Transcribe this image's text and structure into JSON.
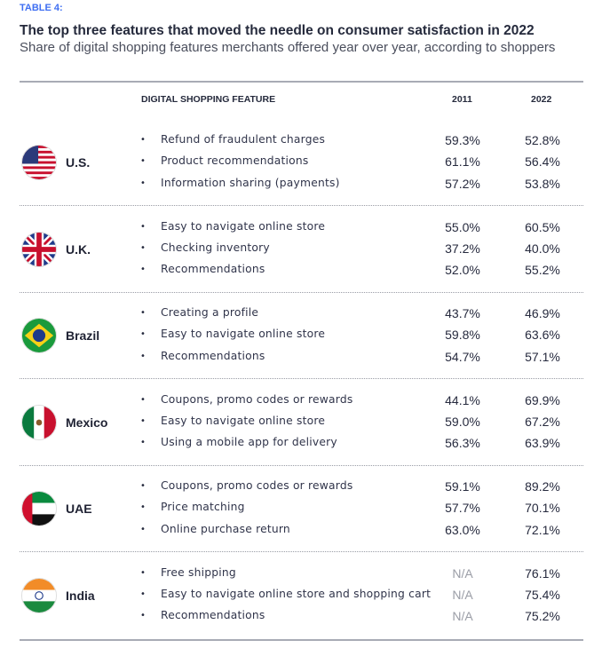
{
  "label": "TABLE 4:",
  "title": "The top three features that moved the needle on consumer satisfaction in 2022",
  "subtitle": "Share of digital shopping features merchants offered year over year, according to shoppers",
  "headers": {
    "feature": "DIGITAL SHOPPING FEATURE",
    "y1": "2011",
    "y2": "2022"
  },
  "groups": [
    {
      "country": "U.S.",
      "flag": "us-flag",
      "rows": [
        [
          "Refund of fraudulent charges",
          "59.3%",
          "52.8%"
        ],
        [
          "Product recommendations",
          "61.1%",
          "56.4%"
        ],
        [
          "Information sharing (payments)",
          "57.2%",
          "53.8%"
        ]
      ]
    },
    {
      "country": "U.K.",
      "flag": "uk-flag",
      "rows": [
        [
          "Easy to navigate online store",
          "55.0%",
          "60.5%"
        ],
        [
          "Checking inventory",
          "37.2%",
          "40.0%"
        ],
        [
          "Recommendations",
          "52.0%",
          "55.2%"
        ]
      ]
    },
    {
      "country": "Brazil",
      "flag": "brazil-flag",
      "rows": [
        [
          "Creating a profile",
          "43.7%",
          "46.9%"
        ],
        [
          "Easy to navigate online store",
          "59.8%",
          "63.6%"
        ],
        [
          "Recommendations",
          "54.7%",
          "57.1%"
        ]
      ]
    },
    {
      "country": "Mexico",
      "flag": "mexico-flag",
      "rows": [
        [
          "Coupons, promo codes or rewards",
          "44.1%",
          "69.9%"
        ],
        [
          "Easy to navigate online store",
          "59.0%",
          "67.2%"
        ],
        [
          "Using a mobile app for delivery",
          "56.3%",
          "63.9%"
        ]
      ]
    },
    {
      "country": "UAE",
      "flag": "uae-flag",
      "rows": [
        [
          "Coupons, promo codes or rewards",
          "59.1%",
          "89.2%"
        ],
        [
          "Price matching",
          "57.7%",
          "70.1%"
        ],
        [
          "Online purchase return",
          "63.0%",
          "72.1%"
        ]
      ]
    },
    {
      "country": "India",
      "flag": "india-flag",
      "rows": [
        [
          "Free shipping",
          "N/A",
          "76.1%"
        ],
        [
          "Easy to navigate online store and shopping cart",
          "N/A",
          "75.4%"
        ],
        [
          "Recommendations",
          "N/A",
          "75.2%"
        ]
      ]
    }
  ]
}
